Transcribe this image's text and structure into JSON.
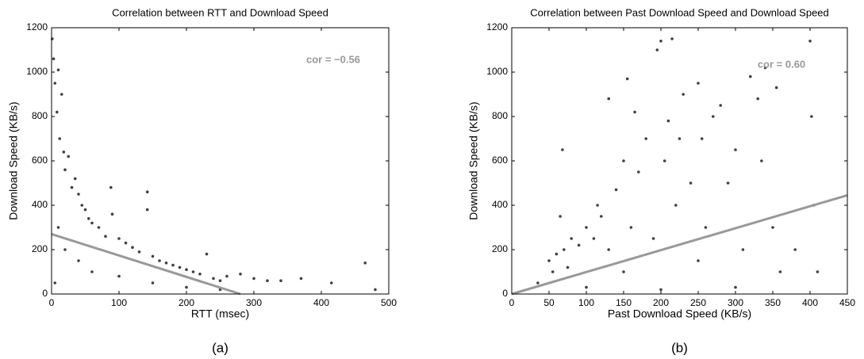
{
  "chart_data": [
    {
      "type": "scatter",
      "title": "Correlation between RTT and Download Speed",
      "xlabel": "RTT (msec)",
      "ylabel": "Download Speed (KB/s)",
      "caption": "(a)",
      "annotation": "cor = −0.56",
      "x": [
        1,
        3,
        5,
        8,
        10,
        12,
        15,
        18,
        20,
        25,
        30,
        35,
        40,
        45,
        50,
        55,
        60,
        70,
        80,
        88,
        90,
        100,
        110,
        120,
        130,
        142,
        142,
        150,
        160,
        170,
        180,
        190,
        200,
        210,
        220,
        230,
        240,
        250,
        260,
        280,
        300,
        320,
        340,
        370,
        415,
        465,
        480,
        10,
        20,
        40,
        60,
        100,
        150,
        200,
        250,
        5
      ],
      "y": [
        1150,
        1060,
        950,
        820,
        1010,
        700,
        900,
        640,
        560,
        620,
        480,
        520,
        450,
        400,
        380,
        340,
        320,
        300,
        260,
        480,
        360,
        250,
        230,
        210,
        190,
        460,
        380,
        170,
        150,
        140,
        130,
        120,
        110,
        100,
        90,
        180,
        70,
        60,
        80,
        90,
        70,
        60,
        60,
        70,
        50,
        140,
        20,
        300,
        200,
        150,
        100,
        80,
        50,
        30,
        20,
        50
      ],
      "color": "#404040",
      "fit": {
        "x": [
          0,
          280
        ],
        "y": [
          270,
          0
        ],
        "color": "#999999"
      },
      "xlim": [
        0,
        500
      ],
      "ylim": [
        0,
        1200
      ],
      "xticks": [
        0,
        100,
        200,
        300,
        400,
        500
      ],
      "yticks": [
        0,
        200,
        400,
        600,
        800,
        1000,
        1200
      ]
    },
    {
      "type": "scatter",
      "title": "Correlation between Past Download Speed and  Download Speed",
      "xlabel": "Past Download Speed (KB/s)",
      "ylabel": "Download Speed (KB/s)",
      "caption": "(b)",
      "annotation": "cor = 0.60",
      "x": [
        35,
        50,
        55,
        60,
        65,
        68,
        70,
        75,
        80,
        90,
        100,
        110,
        115,
        120,
        130,
        130,
        140,
        150,
        155,
        160,
        165,
        170,
        180,
        190,
        195,
        200,
        205,
        210,
        215,
        220,
        225,
        230,
        240,
        250,
        255,
        260,
        270,
        280,
        290,
        300,
        310,
        320,
        330,
        335,
        340,
        350,
        355,
        360,
        380,
        400,
        402,
        405,
        410,
        100,
        200,
        300,
        150,
        250
      ],
      "y": [
        50,
        150,
        100,
        180,
        350,
        650,
        200,
        120,
        250,
        220,
        300,
        250,
        400,
        350,
        880,
        200,
        470,
        600,
        970,
        300,
        820,
        550,
        700,
        250,
        1100,
        1140,
        600,
        780,
        1150,
        400,
        700,
        900,
        500,
        950,
        700,
        300,
        800,
        850,
        500,
        650,
        200,
        980,
        880,
        600,
        1020,
        300,
        930,
        100,
        200,
        1140,
        800,
        400,
        100,
        30,
        20,
        30,
        100,
        150
      ],
      "color": "#404040",
      "fit": {
        "x": [
          0,
          450
        ],
        "y": [
          0,
          445
        ],
        "color": "#999999"
      },
      "xlim": [
        0,
        450
      ],
      "ylim": [
        0,
        1200
      ],
      "xticks": [
        0,
        50,
        100,
        150,
        200,
        250,
        300,
        350,
        400,
        450
      ],
      "yticks": [
        0,
        200,
        400,
        600,
        800,
        1000,
        1200
      ]
    }
  ]
}
